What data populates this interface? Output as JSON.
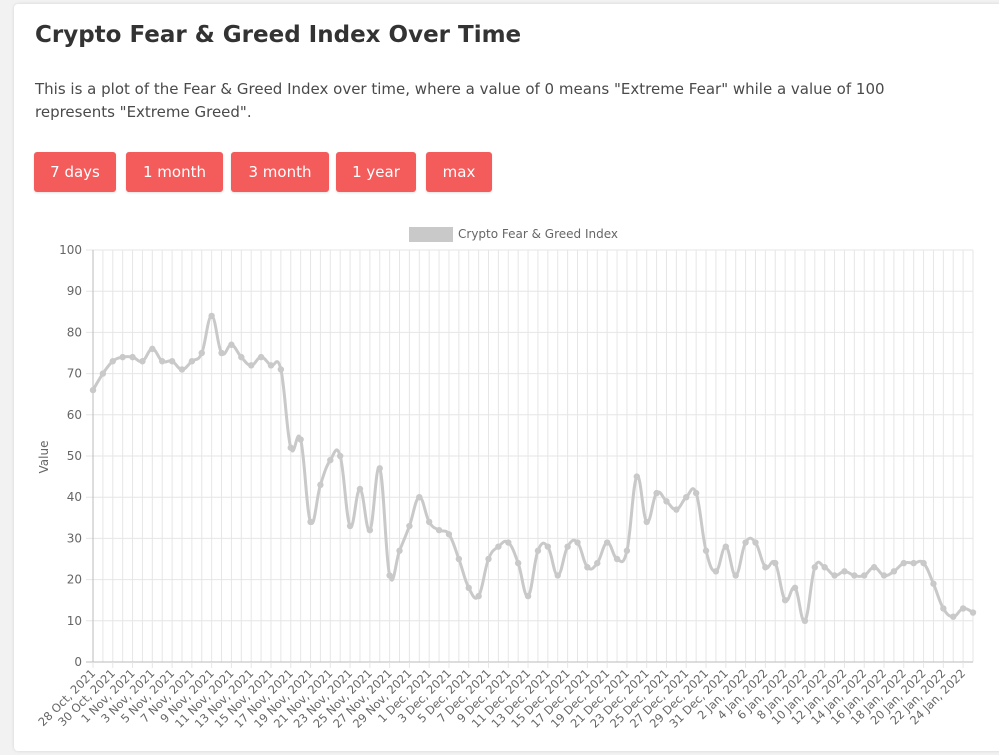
{
  "header": {
    "title": "Crypto Fear & Greed Index Over Time",
    "description": "This is a plot of the Fear & Greed Index over time, where a value of 0 means \"Extreme Fear\" while a value of 100 represents \"Extreme Greed\"."
  },
  "buttons": [
    {
      "label": "7 days"
    },
    {
      "label": "1 month"
    },
    {
      "label": "3 month"
    },
    {
      "label": "1 year"
    },
    {
      "label": "max"
    }
  ],
  "colors": {
    "button": "#f45b5b",
    "series": "#c9c9c9",
    "grid": "#e6e6e6"
  },
  "chart_data": {
    "type": "line",
    "legend": {
      "label": "Crypto Fear & Greed Index",
      "position": "top"
    },
    "ylabel": "Value",
    "ylim": [
      0,
      100
    ],
    "yticks": [
      0,
      10,
      20,
      30,
      40,
      50,
      60,
      70,
      80,
      90,
      100
    ],
    "grid": true,
    "x_tick_labels": [
      "28 Oct, 2021",
      "30 Oct, 2021",
      "1 Nov, 2021",
      "3 Nov, 2021",
      "5 Nov, 2021",
      "7 Nov, 2021",
      "9 Nov, 2021",
      "11 Nov, 2021",
      "13 Nov, 2021",
      "15 Nov, 2021",
      "17 Nov, 2021",
      "19 Nov, 2021",
      "21 Nov, 2021",
      "23 Nov, 2021",
      "25 Nov, 2021",
      "27 Nov, 2021",
      "29 Nov, 2021",
      "1 Dec, 2021",
      "3 Dec, 2021",
      "5 Dec, 2021",
      "7 Dec, 2021",
      "9 Dec, 2021",
      "11 Dec, 2021",
      "13 Dec, 2021",
      "15 Dec, 2021",
      "17 Dec, 2021",
      "19 Dec, 2021",
      "21 Dec, 2021",
      "23 Dec, 2021",
      "25 Dec, 2021",
      "27 Dec, 2021",
      "29 Dec, 2021",
      "31 Dec, 2021",
      "2 Jan, 2022",
      "4 Jan, 2022",
      "6 Jan, 2022",
      "8 Jan, 2022",
      "10 Jan, 2022",
      "12 Jan, 2022",
      "14 Jan, 2022",
      "16 Jan, 2022",
      "18 Jan, 2022",
      "20 Jan, 2022",
      "22 Jan, 2022",
      "24 Jan, 2022"
    ],
    "x": [
      "2021-10-28",
      "2021-10-29",
      "2021-10-30",
      "2021-10-31",
      "2021-11-01",
      "2021-11-02",
      "2021-11-03",
      "2021-11-04",
      "2021-11-05",
      "2021-11-06",
      "2021-11-07",
      "2021-11-08",
      "2021-11-09",
      "2021-11-10",
      "2021-11-11",
      "2021-11-12",
      "2021-11-13",
      "2021-11-14",
      "2021-11-15",
      "2021-11-16",
      "2021-11-17",
      "2021-11-18",
      "2021-11-19",
      "2021-11-20",
      "2021-11-21",
      "2021-11-22",
      "2021-11-23",
      "2021-11-24",
      "2021-11-25",
      "2021-11-26",
      "2021-11-27",
      "2021-11-28",
      "2021-11-29",
      "2021-11-30",
      "2021-12-01",
      "2021-12-02",
      "2021-12-03",
      "2021-12-04",
      "2021-12-05",
      "2021-12-06",
      "2021-12-07",
      "2021-12-08",
      "2021-12-09",
      "2021-12-10",
      "2021-12-11",
      "2021-12-12",
      "2021-12-13",
      "2021-12-14",
      "2021-12-15",
      "2021-12-16",
      "2021-12-17",
      "2021-12-18",
      "2021-12-19",
      "2021-12-20",
      "2021-12-21",
      "2021-12-22",
      "2021-12-23",
      "2021-12-24",
      "2021-12-25",
      "2021-12-26",
      "2021-12-27",
      "2021-12-28",
      "2021-12-29",
      "2021-12-30",
      "2021-12-31",
      "2022-01-01",
      "2022-01-02",
      "2022-01-03",
      "2022-01-04",
      "2022-01-05",
      "2022-01-06",
      "2022-01-07",
      "2022-01-08",
      "2022-01-09",
      "2022-01-10",
      "2022-01-11",
      "2022-01-12",
      "2022-01-13",
      "2022-01-14",
      "2022-01-15",
      "2022-01-16",
      "2022-01-17",
      "2022-01-18",
      "2022-01-19",
      "2022-01-20",
      "2022-01-21",
      "2022-01-22",
      "2022-01-23",
      "2022-01-24",
      "2022-01-25"
    ],
    "series": [
      {
        "name": "Crypto Fear & Greed Index",
        "values": [
          66,
          70,
          73,
          74,
          74,
          73,
          76,
          73,
          73,
          71,
          73,
          75,
          84,
          75,
          77,
          74,
          72,
          74,
          72,
          71,
          52,
          54,
          34,
          43,
          49,
          50,
          33,
          42,
          32,
          47,
          21,
          27,
          33,
          40,
          34,
          32,
          31,
          25,
          18,
          16,
          25,
          28,
          29,
          24,
          16,
          27,
          28,
          21,
          28,
          29,
          23,
          24,
          29,
          25,
          27,
          45,
          34,
          41,
          39,
          37,
          40,
          41,
          27,
          22,
          28,
          21,
          29,
          29,
          23,
          24,
          15,
          18,
          10,
          23,
          23,
          21,
          22,
          21,
          21,
          23,
          21,
          22,
          24,
          24,
          24,
          19,
          13,
          11,
          13,
          12
        ]
      }
    ]
  }
}
